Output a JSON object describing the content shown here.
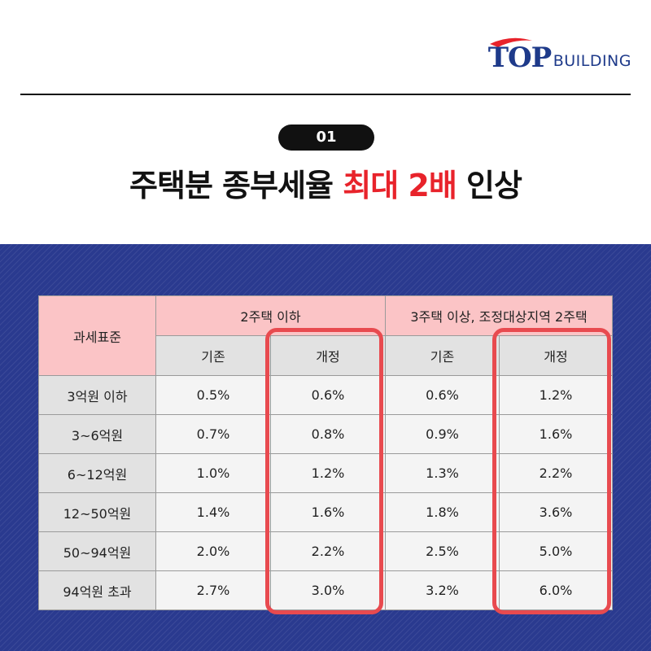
{
  "logo": {
    "mark": "TOP",
    "word": "BUILDING",
    "brand_color": "#1e3a8a",
    "accent_color": "#e8232b"
  },
  "section_number": "01",
  "headline": {
    "before": "주택분 종부세율 ",
    "highlight": "최대 2배",
    "after": " 인상",
    "highlight_color": "#e8232b"
  },
  "table": {
    "row_header": "과세표준",
    "groups": [
      "2주택 이하",
      "3주택 이상, 조정대상지역 2주택"
    ],
    "subheaders": [
      "기존",
      "개정",
      "기존",
      "개정"
    ],
    "rows": [
      {
        "label": "3억원 이하",
        "values": [
          "0.5%",
          "0.6%",
          "0.6%",
          "1.2%"
        ]
      },
      {
        "label": "3~6억원",
        "values": [
          "0.7%",
          "0.8%",
          "0.9%",
          "1.6%"
        ]
      },
      {
        "label": "6~12억원",
        "values": [
          "1.0%",
          "1.2%",
          "1.3%",
          "2.2%"
        ]
      },
      {
        "label": "12~50억원",
        "values": [
          "1.4%",
          "1.6%",
          "1.8%",
          "3.6%"
        ]
      },
      {
        "label": "50~94억원",
        "values": [
          "2.0%",
          "2.2%",
          "2.5%",
          "5.0%"
        ]
      },
      {
        "label": "94억원 초과",
        "values": [
          "2.7%",
          "3.0%",
          "3.2%",
          "6.0%"
        ]
      }
    ]
  },
  "colors": {
    "band": "#2a3a8f",
    "header_pink": "#fbc4c6",
    "highlight_border": "#e84a4f"
  }
}
